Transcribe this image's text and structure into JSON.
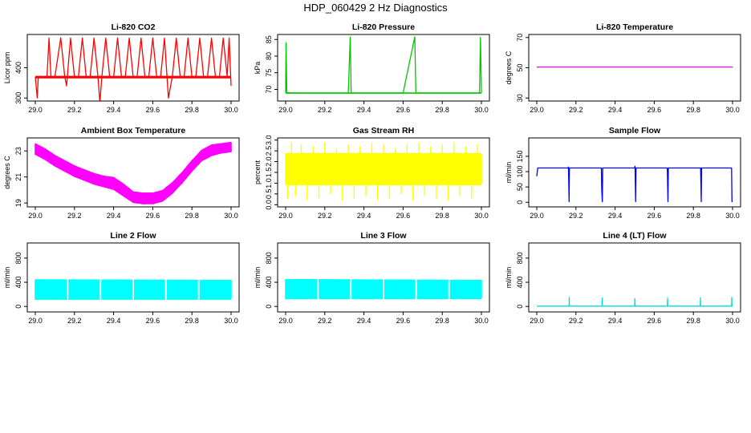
{
  "figure": {
    "title": "HDP_060429  2 Hz Diagnostics"
  },
  "chart_data": [
    {
      "type": "line",
      "title": "Li-820 CO2",
      "xlabel": "",
      "ylabel": "Licor ppm",
      "xlim": [
        29.0,
        30.0
      ],
      "ylim": [
        290,
        510
      ],
      "xticks": [
        29.0,
        29.2,
        29.4,
        29.6,
        29.8,
        30.0
      ],
      "xtick_labels": [
        "29.0",
        "29.2",
        "29.4",
        "29.6",
        "29.8",
        "30.0"
      ],
      "yticks": [
        300,
        400
      ],
      "ytick_labels": [
        "300",
        "400"
      ],
      "color": "#ff0000",
      "series": [
        {
          "name": "CO2",
          "x": [
            29.0,
            29.01,
            29.015,
            29.02,
            29.04,
            29.06,
            29.07,
            29.08,
            29.1,
            29.13,
            29.15,
            29.16,
            29.18,
            29.2,
            29.22,
            29.24,
            29.26,
            29.28,
            29.3,
            29.32,
            29.33,
            29.34,
            29.36,
            29.38,
            29.4,
            29.42,
            29.44,
            29.46,
            29.48,
            29.5,
            29.52,
            29.54,
            29.56,
            29.58,
            29.6,
            29.62,
            29.64,
            29.66,
            29.68,
            29.7,
            29.72,
            29.74,
            29.76,
            29.78,
            29.8,
            29.82,
            29.84,
            29.86,
            29.88,
            29.9,
            29.92,
            29.94,
            29.96,
            29.98,
            29.99,
            30.0
          ],
          "y": [
            370,
            300,
            368,
            372,
            368,
            371,
            498,
            369,
            370,
            499,
            372,
            340,
            498,
            370,
            369,
            498,
            371,
            369,
            498,
            370,
            285,
            372,
            498,
            370,
            369,
            498,
            371,
            372,
            498,
            369,
            371,
            498,
            370,
            372,
            498,
            369,
            370,
            498,
            300,
            371,
            498,
            370,
            369,
            498,
            370,
            372,
            498,
            369,
            371,
            498,
            370,
            369,
            498,
            372,
            498,
            340
          ]
        }
      ]
    },
    {
      "type": "line",
      "title": "Li-820 Pressure",
      "xlabel": "",
      "ylabel": "kPa",
      "xlim": [
        29.0,
        30.0
      ],
      "ylim": [
        66.5,
        86.5
      ],
      "xticks": [
        29.0,
        29.2,
        29.4,
        29.6,
        29.8,
        30.0
      ],
      "xtick_labels": [
        "29.0",
        "29.2",
        "29.4",
        "29.6",
        "29.8",
        "30.0"
      ],
      "yticks": [
        70,
        75,
        80,
        85
      ],
      "ytick_labels": [
        "70",
        "75",
        "80",
        "85"
      ],
      "color": "#00c800",
      "series": [
        {
          "name": "Pressure",
          "x": [
            29.0,
            29.002,
            29.006,
            29.05,
            29.1,
            29.16,
            29.2,
            29.25,
            29.32,
            29.33,
            29.335,
            29.4,
            29.5,
            29.55,
            29.6,
            29.66,
            29.665,
            29.67,
            29.75,
            29.83,
            29.9,
            29.99,
            29.995,
            30.0
          ],
          "y": [
            69,
            84,
            69,
            68.9,
            68.9,
            68.9,
            68.9,
            68.9,
            68.9,
            85.7,
            68.9,
            68.9,
            68.9,
            68.9,
            68.9,
            85.8,
            68.9,
            68.9,
            68.9,
            68.9,
            68.9,
            68.9,
            85.6,
            68.9
          ]
        }
      ]
    },
    {
      "type": "line",
      "title": "Li-820 Temperature",
      "xlabel": "",
      "ylabel": "degrees C",
      "xlim": [
        29.0,
        30.0
      ],
      "ylim": [
        28,
        72
      ],
      "xticks": [
        29.0,
        29.2,
        29.4,
        29.6,
        29.8,
        30.0
      ],
      "xtick_labels": [
        "29.0",
        "29.2",
        "29.4",
        "29.6",
        "29.8",
        "30.0"
      ],
      "yticks": [
        30,
        50,
        70
      ],
      "ytick_labels": [
        "30",
        "50",
        "70"
      ],
      "color": "#ff00ff",
      "series": [
        {
          "name": "Temperature",
          "x": [
            29.0,
            30.0
          ],
          "y": [
            50.5,
            50.5
          ]
        }
      ]
    },
    {
      "type": "area",
      "title": "Ambient Box Temperature",
      "xlabel": "",
      "ylabel": "degrees C",
      "xlim": [
        29.0,
        30.0
      ],
      "ylim": [
        18.7,
        24.0
      ],
      "xticks": [
        29.0,
        29.2,
        29.4,
        29.6,
        29.8,
        30.0
      ],
      "xtick_labels": [
        "29.0",
        "29.2",
        "29.4",
        "29.6",
        "29.8",
        "30.0"
      ],
      "yticks": [
        19,
        21,
        23
      ],
      "ytick_labels": [
        "19",
        "21",
        "23"
      ],
      "color": "#ff00ff",
      "series": [
        {
          "name": "Band upper",
          "x": [
            29.0,
            29.05,
            29.1,
            29.15,
            29.2,
            29.25,
            29.3,
            29.35,
            29.4,
            29.45,
            29.5,
            29.55,
            29.6,
            29.65,
            29.7,
            29.75,
            29.8,
            29.85,
            29.9,
            29.95,
            30.0
          ],
          "y": [
            23.6,
            23.2,
            22.7,
            22.3,
            21.9,
            21.6,
            21.3,
            21.1,
            21.0,
            20.5,
            19.9,
            19.8,
            19.8,
            20.0,
            20.6,
            21.4,
            22.3,
            23.1,
            23.5,
            23.6,
            23.7
          ]
        },
        {
          "name": "Band lower",
          "x": [
            29.0,
            29.05,
            29.1,
            29.15,
            29.2,
            29.25,
            29.3,
            29.35,
            29.4,
            29.45,
            29.5,
            29.55,
            29.6,
            29.65,
            29.7,
            29.75,
            29.8,
            29.85,
            29.9,
            29.95,
            30.0
          ],
          "y": [
            22.7,
            22.3,
            21.8,
            21.4,
            21.0,
            20.7,
            20.4,
            20.2,
            20.0,
            19.5,
            19.0,
            18.9,
            18.9,
            19.1,
            19.7,
            20.5,
            21.4,
            22.2,
            22.6,
            22.8,
            22.9
          ]
        }
      ]
    },
    {
      "type": "area",
      "title": "Gas Stream RH",
      "xlabel": "",
      "ylabel": "percent",
      "xlim": [
        29.0,
        30.0
      ],
      "ylim": [
        -0.1,
        3.1
      ],
      "xticks": [
        29.0,
        29.2,
        29.4,
        29.6,
        29.8,
        30.0
      ],
      "xtick_labels": [
        "29.0",
        "29.2",
        "29.4",
        "29.6",
        "29.8",
        "30.0"
      ],
      "yticks": [
        0.0,
        0.5,
        1.0,
        1.5,
        2.0,
        2.5,
        3.0
      ],
      "ytick_labels": [
        "0.0",
        "0.5",
        "1.0",
        "1.5",
        "2.0",
        "2.5",
        "3.0"
      ],
      "color": "#ffff00",
      "series": [
        {
          "name": "Band upper",
          "x": [
            29.0,
            30.0
          ],
          "y": [
            2.4,
            2.4
          ]
        },
        {
          "name": "Band lower",
          "x": [
            29.0,
            30.0
          ],
          "y": [
            0.9,
            0.9
          ]
        },
        {
          "name": "Spikes",
          "x": [
            29.01,
            29.03,
            29.05,
            29.08,
            29.11,
            29.14,
            29.17,
            29.2,
            29.23,
            29.26,
            29.29,
            29.32,
            29.35,
            29.38,
            29.41,
            29.44,
            29.47,
            29.5,
            29.53,
            29.56,
            29.59,
            29.62,
            29.65,
            29.68,
            29.71,
            29.74,
            29.77,
            29.8,
            29.83,
            29.86,
            29.89,
            29.92,
            29.95,
            29.98
          ],
          "y": [
            0.3,
            2.9,
            0.4,
            2.8,
            0.2,
            2.7,
            0.3,
            2.9,
            0.5,
            2.6,
            0.2,
            2.8,
            0.3,
            2.7,
            0.4,
            2.9,
            0.2,
            2.8,
            0.3,
            2.6,
            0.5,
            2.8,
            0.2,
            2.9,
            0.4,
            2.7,
            0.3,
            2.8,
            0.2,
            2.9,
            0.4,
            2.7,
            0.3,
            2.8
          ]
        }
      ]
    },
    {
      "type": "line",
      "title": "Sample Flow",
      "xlabel": "",
      "ylabel": "ml/min",
      "xlim": [
        29.0,
        30.0
      ],
      "ylim": [
        -15,
        210
      ],
      "xticks": [
        29.0,
        29.2,
        29.4,
        29.6,
        29.8,
        30.0
      ],
      "xtick_labels": [
        "29.0",
        "29.2",
        "29.4",
        "29.6",
        "29.8",
        "30.0"
      ],
      "yticks": [
        0,
        50,
        100,
        150
      ],
      "ytick_labels": [
        "0",
        "50",
        "100",
        "150"
      ],
      "color": "#0000ff",
      "series": [
        {
          "name": "Sample flow",
          "x": [
            29.0,
            29.005,
            29.16,
            29.162,
            29.165,
            29.167,
            29.33,
            29.332,
            29.335,
            29.337,
            29.5,
            29.502,
            29.505,
            29.507,
            29.665,
            29.667,
            29.67,
            29.672,
            29.835,
            29.837,
            29.84,
            29.842,
            29.995,
            29.997,
            30.0
          ],
          "y": [
            85,
            112,
            112,
            115,
            2,
            112,
            112,
            40,
            2,
            112,
            112,
            118,
            2,
            112,
            112,
            110,
            2,
            112,
            112,
            112,
            2,
            112,
            112,
            2,
            2
          ]
        }
      ]
    },
    {
      "type": "area",
      "title": "Line 2 Flow",
      "xlabel": "",
      "ylabel": "ml/min",
      "xlim": [
        29.0,
        30.0
      ],
      "ylim": [
        -90,
        1050
      ],
      "xticks": [
        29.0,
        29.2,
        29.4,
        29.6,
        29.8,
        30.0
      ],
      "xtick_labels": [
        "29.0",
        "29.2",
        "29.4",
        "29.6",
        "29.8",
        "30.0"
      ],
      "yticks": [
        0,
        400,
        800
      ],
      "ytick_labels": [
        "0",
        "400",
        "800"
      ],
      "color": "#00ffff",
      "series": [
        {
          "name": "Band upper",
          "x": [
            29.0,
            30.0
          ],
          "y": [
            450,
            440
          ]
        },
        {
          "name": "Band lower",
          "x": [
            29.0,
            30.0
          ],
          "y": [
            110,
            110
          ]
        },
        {
          "name": "Gaps",
          "x": [
            29.165,
            29.333,
            29.5,
            29.667,
            29.835
          ],
          "y": [
            110,
            110,
            110,
            110,
            110
          ]
        }
      ]
    },
    {
      "type": "area",
      "title": "Line 3 Flow",
      "xlabel": "",
      "ylabel": "ml/min",
      "xlim": [
        29.0,
        30.0
      ],
      "ylim": [
        -90,
        1050
      ],
      "xticks": [
        29.0,
        29.2,
        29.4,
        29.6,
        29.8,
        30.0
      ],
      "xtick_labels": [
        "29.0",
        "29.2",
        "29.4",
        "29.6",
        "29.8",
        "30.0"
      ],
      "yticks": [
        0,
        400,
        800
      ],
      "ytick_labels": [
        "0",
        "400",
        "800"
      ],
      "color": "#00ffff",
      "series": [
        {
          "name": "Band upper",
          "x": [
            29.0,
            30.0
          ],
          "y": [
            455,
            440
          ]
        },
        {
          "name": "Band lower",
          "x": [
            29.0,
            30.0
          ],
          "y": [
            120,
            120
          ]
        },
        {
          "name": "Gaps",
          "x": [
            29.165,
            29.333,
            29.5,
            29.667,
            29.835
          ],
          "y": [
            120,
            120,
            120,
            120,
            120
          ]
        }
      ]
    },
    {
      "type": "line",
      "title": "Line 4 (LT) Flow",
      "xlabel": "",
      "ylabel": "ml/min",
      "xlim": [
        29.0,
        30.0
      ],
      "ylim": [
        -90,
        1050
      ],
      "xticks": [
        29.0,
        29.2,
        29.4,
        29.6,
        29.8,
        30.0
      ],
      "xtick_labels": [
        "29.0",
        "29.2",
        "29.4",
        "29.6",
        "29.8",
        "30.0"
      ],
      "yticks": [
        0,
        400,
        800
      ],
      "ytick_labels": [
        "0",
        "400",
        "800"
      ],
      "color": "#00dcdc",
      "series": [
        {
          "name": "Line 4 flow",
          "x": [
            29.0,
            29.165,
            29.166,
            29.167,
            29.333,
            29.334,
            29.335,
            29.5,
            29.501,
            29.502,
            29.667,
            29.668,
            29.669,
            29.835,
            29.836,
            29.837,
            29.995,
            29.996,
            29.997,
            30.0
          ],
          "y": [
            5,
            5,
            150,
            5,
            5,
            140,
            5,
            5,
            130,
            5,
            5,
            140,
            5,
            5,
            145,
            5,
            5,
            150,
            5,
            5
          ]
        }
      ]
    }
  ]
}
